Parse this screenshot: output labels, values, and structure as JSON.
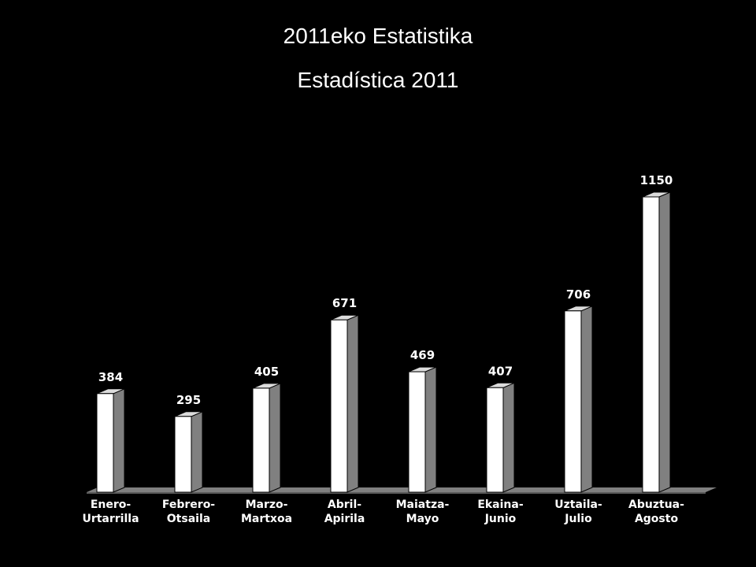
{
  "chart_data": {
    "type": "bar",
    "title": "2011eko Estatistika",
    "subtitle": "Estadística 2011",
    "categories": [
      [
        "Enero-",
        "Urtarrilla"
      ],
      [
        "Febrero-",
        "Otsaila"
      ],
      [
        "Marzo-",
        "Martxoa"
      ],
      [
        "Abril-",
        "Apirila"
      ],
      [
        "Maiatza-",
        "Mayo"
      ],
      [
        "Ekaina-",
        "Junio"
      ],
      [
        "Uztaila-",
        "Julio"
      ],
      [
        "Abuztua-",
        "Agosto"
      ]
    ],
    "values": [
      384,
      295,
      405,
      671,
      469,
      407,
      706,
      1150
    ],
    "value_labels": [
      "384",
      "295",
      "405",
      "671",
      "469",
      "407",
      "706",
      "1150"
    ],
    "ylim": [
      0,
      1150
    ],
    "grid": false,
    "legend": "none",
    "colors": {
      "background": "#000000",
      "bar_front": "#ffffff",
      "bar_side": "#808080",
      "floor": "#808080",
      "text": "#ffffff"
    }
  }
}
